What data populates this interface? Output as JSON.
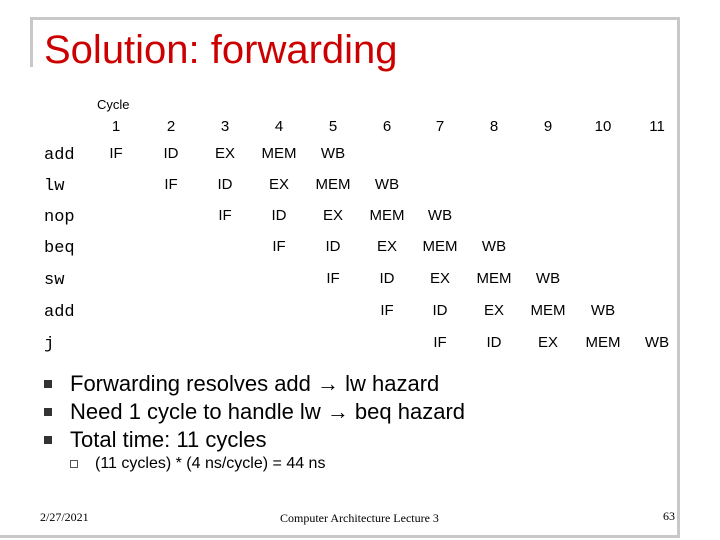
{
  "slide": {
    "title": "Solution: forwarding",
    "cycle_label": "Cycle",
    "cycles": [
      "1",
      "2",
      "3",
      "4",
      "5",
      "6",
      "7",
      "8",
      "9",
      "10",
      "11"
    ],
    "instructions": [
      {
        "name": "add",
        "start_cycle": 1,
        "stages": [
          "IF",
          "ID",
          "EX",
          "MEM",
          "WB"
        ]
      },
      {
        "name": "lw",
        "start_cycle": 2,
        "stages": [
          "IF",
          "ID",
          "EX",
          "MEM",
          "WB"
        ]
      },
      {
        "name": "nop",
        "start_cycle": 3,
        "stages": [
          "IF",
          "ID",
          "EX",
          "MEM",
          "WB"
        ]
      },
      {
        "name": "beq",
        "start_cycle": 4,
        "stages": [
          "IF",
          "ID",
          "EX",
          "MEM",
          "WB"
        ]
      },
      {
        "name": "sw",
        "start_cycle": 5,
        "stages": [
          "IF",
          "ID",
          "EX",
          "MEM",
          "WB"
        ]
      },
      {
        "name": "add",
        "start_cycle": 6,
        "stages": [
          "IF",
          "ID",
          "EX",
          "MEM",
          "WB"
        ]
      },
      {
        "name": "j",
        "start_cycle": 7,
        "stages": [
          "IF",
          "ID",
          "EX",
          "MEM",
          "WB"
        ]
      }
    ],
    "bullets": [
      "Forwarding resolves add → lw hazard",
      "Need 1 cycle to handle lw → beq hazard",
      "Total time: 11 cycles"
    ],
    "sub_bullet": "(11 cycles) * (4 ns/cycle) = 44 ns",
    "footer": {
      "date": "2/27/2021",
      "course": "Computer Architecture Lecture 3",
      "page": "63"
    }
  }
}
